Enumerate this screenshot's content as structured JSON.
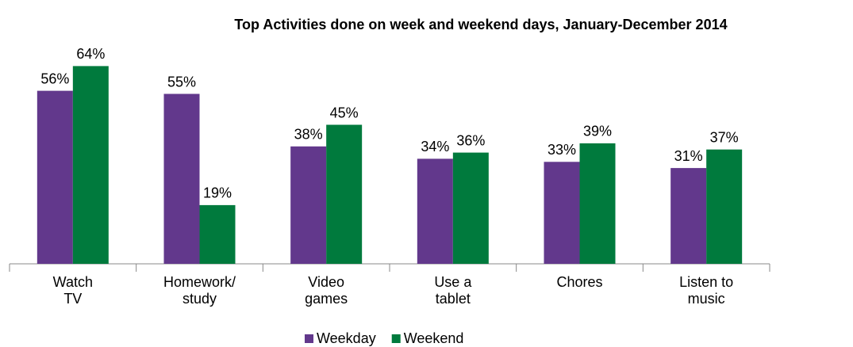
{
  "chart_data": {
    "type": "bar",
    "title": "Top Activities done on week and weekend days, January-December 2014",
    "categories": [
      [
        "Watch",
        "TV"
      ],
      [
        "Homework/",
        "study"
      ],
      [
        "Video",
        "games"
      ],
      [
        "Use a",
        "tablet"
      ],
      [
        "Chores"
      ],
      [
        "Listen to",
        "music"
      ]
    ],
    "series": [
      {
        "name": "Weekday",
        "color": "#62388c",
        "values": [
          56,
          55,
          38,
          34,
          33,
          31
        ],
        "value_labels": [
          "56%",
          "55%",
          "38%",
          "34%",
          "33%",
          "31%"
        ]
      },
      {
        "name": "Weekend",
        "color": "#007a3d",
        "values": [
          64,
          19,
          45,
          36,
          39,
          37
        ],
        "value_labels": [
          "64%",
          "19%",
          "45%",
          "36%",
          "39%",
          "37%"
        ]
      }
    ],
    "ylim": [
      0,
      70
    ],
    "legend": "bottom"
  }
}
